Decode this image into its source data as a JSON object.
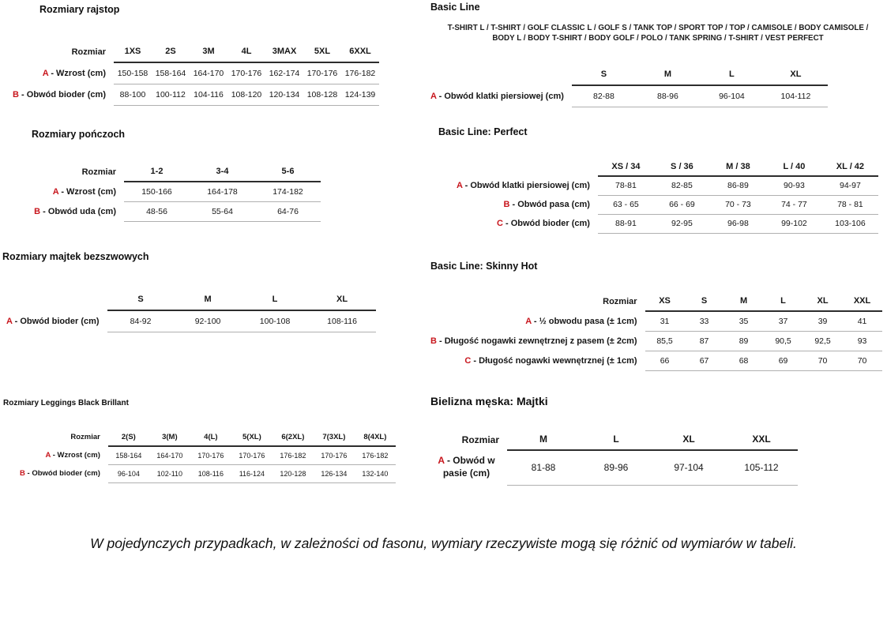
{
  "page": {
    "footnote": "W pojedynczych przypadkach, w zależności od fasonu, wymiary rzeczywiste mogą się różnić od wymiarów w tabeli."
  },
  "colors": {
    "accent_red": "#c8161d",
    "header_rule": "#2d2d2d",
    "row_rule": "#b0b0b0"
  },
  "left_tables": [
    {
      "id": "rajstop",
      "title": "Rozmiary rajstop",
      "corner_label": "Rozmiar",
      "columns": [
        "1XS",
        "2S",
        "3M",
        "4L",
        "3MAX",
        "5XL",
        "6XXL"
      ],
      "rows": [
        {
          "key": "A",
          "label": "Wzrost (cm)",
          "values": [
            "150-158",
            "158-164",
            "164-170",
            "170-176",
            "162-174",
            "170-176",
            "176-182"
          ]
        },
        {
          "key": "B",
          "label": "Obwód bioder (cm)",
          "values": [
            "88-100",
            "100-112",
            "104-116",
            "108-120",
            "120-134",
            "108-128",
            "124-139"
          ]
        }
      ]
    },
    {
      "id": "ponczoch",
      "title": "Rozmiary pończoch",
      "corner_label": "Rozmiar",
      "columns": [
        "1-2",
        "3-4",
        "5-6"
      ],
      "rows": [
        {
          "key": "A",
          "label": "Wzrost (cm)",
          "values": [
            "150-166",
            "164-178",
            "174-182"
          ]
        },
        {
          "key": "B",
          "label": "Obwód uda (cm)",
          "values": [
            "48-56",
            "55-64",
            "64-76"
          ]
        }
      ]
    },
    {
      "id": "majtki-bezszwowe",
      "title": "Rozmiary majtek bezszwowych",
      "corner_label": "",
      "columns": [
        "S",
        "M",
        "L",
        "XL"
      ],
      "rows": [
        {
          "key": "A",
          "label": "Obwód bioder (cm)",
          "values": [
            "84-92",
            "92-100",
            "100-108",
            "108-116"
          ]
        }
      ]
    },
    {
      "id": "leggings",
      "title": "Rozmiary Leggings Black Brillant",
      "corner_label": "Rozmiar",
      "columns": [
        "2(S)",
        "3(M)",
        "4(L)",
        "5(XL)",
        "6(2XL)",
        "7(3XL)",
        "8(4XL)"
      ],
      "rows": [
        {
          "key": "A",
          "label": "Wzrost (cm)",
          "values": [
            "158-164",
            "164-170",
            "170-176",
            "170-176",
            "176-182",
            "170-176",
            "176-182"
          ]
        },
        {
          "key": "B",
          "label": "Obwód bioder (cm)",
          "values": [
            "96-104",
            "102-110",
            "108-116",
            "116-124",
            "120-128",
            "126-134",
            "132-140"
          ]
        }
      ]
    }
  ],
  "right_tables": [
    {
      "id": "basic-line",
      "title": "Basic Line",
      "subtitle": "T-SHIRT L / T-SHIRT / GOLF CLASSIC L / GOLF S / TANK TOP / SPORT TOP / TOP / CAMISOLE / BODY CAMISOLE / BODY L / BODY T-SHIRT / BODY GOLF / POLO / TANK SPRING / T-SHIRT / VEST PERFECT",
      "corner_label": "",
      "columns": [
        "S",
        "M",
        "L",
        "XL"
      ],
      "rows": [
        {
          "key": "A",
          "label": "Obwód klatki piersiowej (cm)",
          "values": [
            "82-88",
            "88-96",
            "96-104",
            "104-112"
          ]
        }
      ]
    },
    {
      "id": "perfect",
      "title": "Basic Line: Perfect",
      "corner_label": "",
      "columns": [
        "XS / 34",
        "S / 36",
        "M / 38",
        "L / 40",
        "XL / 42"
      ],
      "rows": [
        {
          "key": "A",
          "label": "Obwód klatki piersiowej (cm)",
          "values": [
            "78-81",
            "82-85",
            "86-89",
            "90-93",
            "94-97"
          ]
        },
        {
          "key": "B",
          "label": "Obwód pasa (cm)",
          "values": [
            "63 - 65",
            "66 - 69",
            "70 - 73",
            "74 - 77",
            "78 - 81"
          ]
        },
        {
          "key": "C",
          "label": "Obwód bioder (cm)",
          "values": [
            "88-91",
            "92-95",
            "96-98",
            "99-102",
            "103-106"
          ]
        }
      ]
    },
    {
      "id": "skinny-hot",
      "title": "Basic Line: Skinny Hot",
      "corner_label": "Rozmiar",
      "columns": [
        "XS",
        "S",
        "M",
        "L",
        "XL",
        "XXL"
      ],
      "rows": [
        {
          "key": "A",
          "label": "½ obwodu pasa (± 1cm)",
          "values": [
            "31",
            "33",
            "35",
            "37",
            "39",
            "41"
          ]
        },
        {
          "key": "B",
          "label": "Długość nogawki zewnętrznej z pasem (± 2cm)",
          "values": [
            "85,5",
            "87",
            "89",
            "90,5",
            "92,5",
            "93"
          ]
        },
        {
          "key": "C",
          "label": "Długość nogawki wewnętrznej (± 1cm)",
          "values": [
            "66",
            "67",
            "68",
            "69",
            "70",
            "70"
          ]
        }
      ]
    },
    {
      "id": "majtki-meskie",
      "title": "Bielizna męska: Majtki",
      "corner_label": "Rozmiar",
      "columns": [
        "M",
        "L",
        "XL",
        "XXL"
      ],
      "rows": [
        {
          "key": "A",
          "label": "Obwód w pasie (cm)",
          "values": [
            "81-88",
            "89-96",
            "97-104",
            "105-112"
          ]
        }
      ]
    }
  ]
}
